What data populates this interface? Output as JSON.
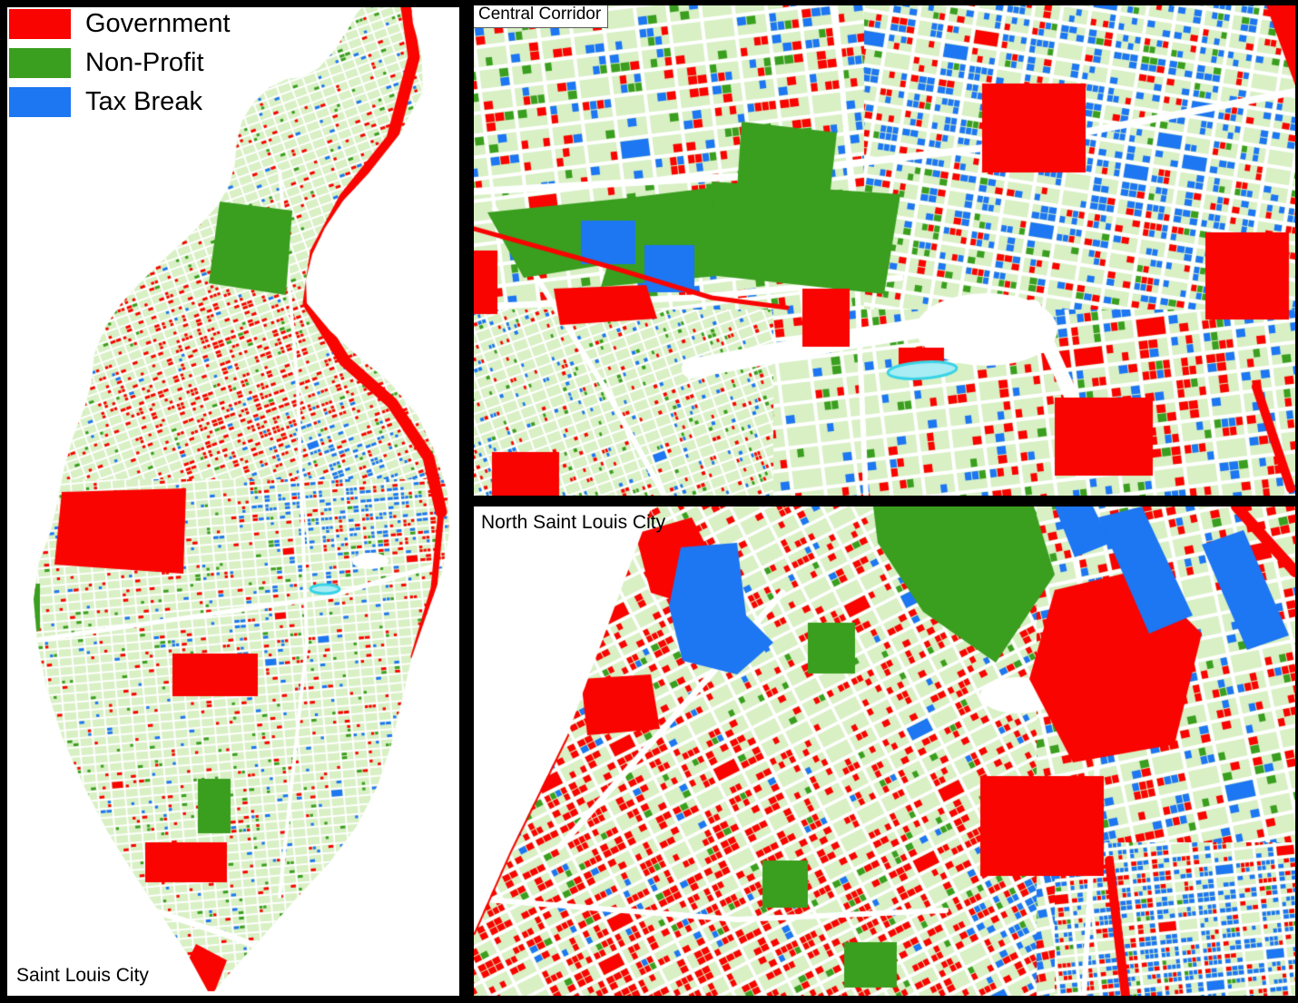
{
  "legend": {
    "items": [
      {
        "id": "government",
        "label": "Government",
        "color": "#f90400"
      },
      {
        "id": "non_profit",
        "label": "Non-Profit",
        "color": "#3a9e1f"
      },
      {
        "id": "tax_break",
        "label": "Tax Break",
        "color": "#1d76f2"
      }
    ]
  },
  "panels": {
    "overview": {
      "label": "Saint Louis City"
    },
    "central_corridor": {
      "label": "Central Corridor"
    },
    "north_city": {
      "label": "North Saint Louis City"
    }
  },
  "map_colors": {
    "government": "#f90400",
    "non_profit": "#3a9e1f",
    "tax_break": "#1d76f2",
    "parcel_base": "#d8f0c4",
    "street": "#ffffff",
    "water": "#38d3e6",
    "water_fill": "#a8ecf4",
    "frame": "#000000",
    "background": "#ffffff"
  }
}
